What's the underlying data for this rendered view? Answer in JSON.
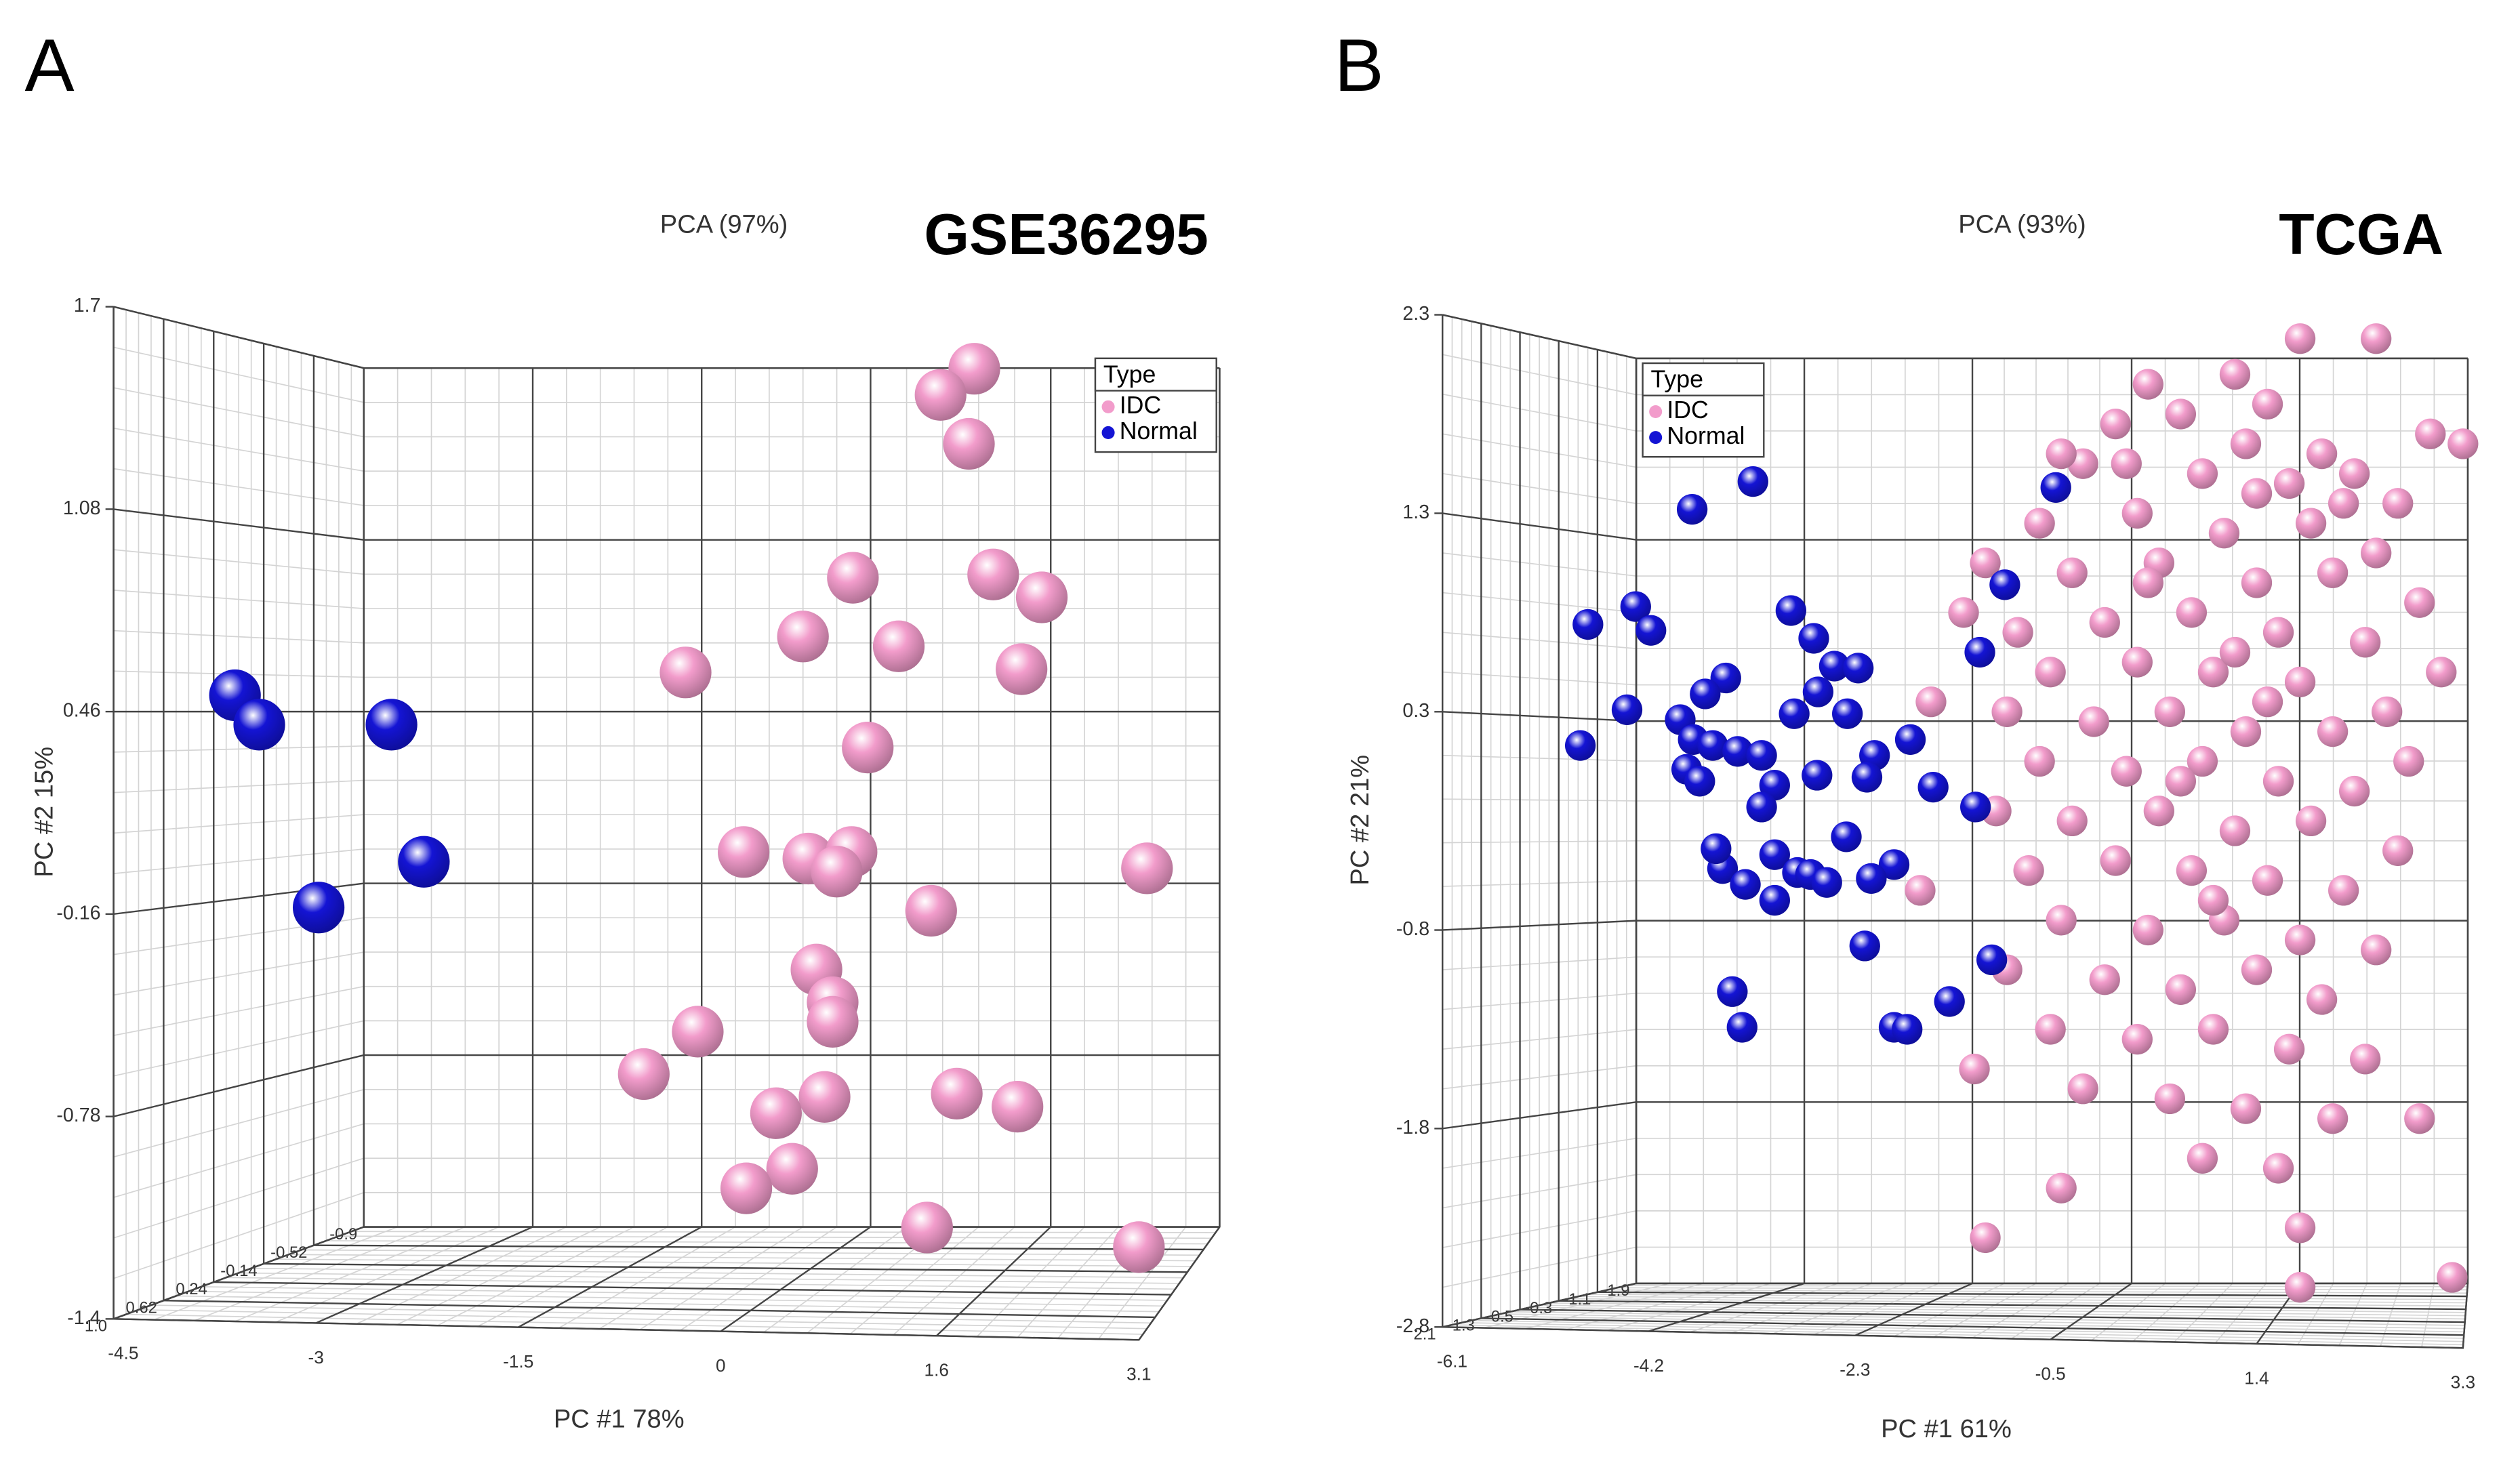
{
  "chart_data": [
    {
      "type": "scatter",
      "panel": "A",
      "title": "PCA (97%)",
      "annotation": "GSE36295",
      "xlabel": "PC #1 78%",
      "ylabel": "PC #2 15%",
      "legend_title": "Type",
      "xlim": [
        -4.5,
        3.1
      ],
      "xticks": [
        -4.5,
        -3,
        -1.5,
        0,
        1.6,
        3.1
      ],
      "ylim": [
        -1.4,
        1.7
      ],
      "yticks": [
        -1.4,
        -0.78,
        -0.16,
        0.46,
        1.08,
        1.7
      ],
      "zlim": [
        -0.9,
        1
      ],
      "zticks": [
        -0.9,
        -0.52,
        -0.14,
        0.24,
        0.62,
        {
          "value": 1,
          "label": "1.0"
        }
      ],
      "series": [
        {
          "name": "IDC",
          "color": "#f29ccb",
          "x": [
            1.88,
            1.63,
            1.84,
            0.98,
            2.02,
            2.38,
            0.61,
            1.32,
            -0.26,
            2.23,
            1.09,
            0.17,
            0.65,
            0.97,
            0.86,
            1.56,
            3.16,
            0.71,
            0.83,
            0.83,
            -0.17,
            -0.57,
            0.77,
            1.75,
            2.2,
            0.41,
            0.53,
            0.19,
            1.53,
            3.1
          ],
          "values": [
            1.51,
            1.43,
            1.28,
            0.87,
            0.88,
            0.81,
            0.69,
            0.66,
            0.58,
            0.59,
            0.35,
            0.03,
            0.01,
            0.03,
            -0.03,
            -0.15,
            -0.02,
            -0.33,
            -0.43,
            -0.49,
            -0.52,
            -0.65,
            -0.72,
            -0.71,
            -0.75,
            -0.77,
            -0.94,
            -1.0,
            -1.12,
            -1.18
          ]
        },
        {
          "name": "Normal",
          "color": "#1414d4",
          "x": [
            -3.6,
            -3.42,
            -2.44,
            -2.2,
            -2.98
          ],
          "values": [
            0.51,
            0.42,
            0.42,
            0.0,
            -0.14
          ]
        }
      ]
    },
    {
      "type": "scatter",
      "panel": "B",
      "title": "PCA (93%)",
      "annotation": "TCGA",
      "xlabel": "PC #1  61%",
      "ylabel": "PC #2  21%",
      "legend_title": "Type",
      "xlim": [
        -6.1,
        3.3
      ],
      "xticks": [
        -6.1,
        -4.2,
        -2.3,
        -0.5,
        1.4,
        3.3
      ],
      "ylim": [
        -2.8,
        2.3
      ],
      "yticks": [
        -2.8,
        -1.8,
        -0.8,
        0.3,
        1.3,
        2.3
      ],
      "zlim": [
        -1.9,
        2.1
      ],
      "zticks": [
        -1.9,
        -1.1,
        -0.3,
        0.5,
        1.3,
        2.1
      ],
      "series": [
        {
          "name": "IDC",
          "color": "#f29ccb",
          "x": [
            1.8,
            2.5,
            0.4,
            1.2,
            3.0,
            0.1,
            0.7,
            1.5,
            2.0,
            -0.2,
            0.9,
            1.7,
            2.3,
            2.7,
            3.3,
            -0.6,
            0.3,
            1.1,
            1.9,
            2.5,
            -1.1,
            -0.3,
            0.5,
            1.4,
            2.1,
            2.9,
            -1.3,
            -0.8,
            0.0,
            0.8,
            1.6,
            2.4,
            3.1,
            -0.5,
            0.3,
            1.0,
            1.8,
            2.6,
            -1.6,
            -0.9,
            -0.1,
            0.6,
            1.3,
            2.1,
            2.8,
            -0.6,
            0.2,
            0.9,
            1.6,
            2.3,
            -1.0,
            -0.3,
            0.5,
            1.2,
            1.9,
            2.7,
            -0.7,
            0.1,
            0.8,
            1.5,
            2.2,
            -1.7,
            -0.4,
            0.4,
            1.1,
            1.8,
            2.5,
            -0.9,
            0.0,
            0.7,
            1.4,
            2.0,
            -0.5,
            0.3,
            1.0,
            1.7,
            2.4,
            -1.2,
            -0.2,
            0.6,
            1.3,
            2.1,
            2.9,
            0.9,
            1.6,
            -0.4,
            1.8,
            -1.1,
            1.8,
            3.2,
            0.4,
            1.2,
            1.5,
            0.7,
            1.0,
            1.4,
            0.2,
            2.2,
            -0.4,
            1.3
          ],
          "values": [
            2.18,
            2.18,
            1.95,
            2.0,
            1.7,
            1.75,
            1.8,
            1.85,
            1.6,
            1.55,
            1.5,
            1.45,
            1.5,
            1.35,
            1.65,
            1.25,
            1.3,
            1.2,
            1.25,
            1.1,
            1.05,
            1.0,
            1.05,
            0.95,
            1.0,
            0.85,
            0.8,
            0.7,
            0.75,
            0.8,
            0.7,
            0.65,
            0.5,
            0.5,
            0.55,
            0.5,
            0.45,
            0.3,
            0.35,
            0.3,
            0.25,
            0.3,
            0.2,
            0.2,
            0.05,
            0.05,
            0.0,
            0.05,
            -0.05,
            -0.1,
            -0.2,
            -0.25,
            -0.2,
            -0.3,
            -0.25,
            -0.4,
            -0.5,
            -0.45,
            -0.5,
            -0.55,
            -0.6,
            -0.6,
            -0.75,
            -0.8,
            -0.75,
            -0.85,
            -0.9,
            -1.0,
            -1.05,
            -1.1,
            -1.0,
            -1.15,
            -1.3,
            -1.35,
            -1.3,
            -1.4,
            -1.45,
            -1.5,
            -1.6,
            -1.65,
            -1.7,
            -1.75,
            -1.75,
            -1.95,
            -2.0,
            -2.1,
            -2.3,
            -2.35,
            -2.6,
            -2.55,
            0.95,
            0.6,
            0.35,
            -0.05,
            -0.65,
            1.4,
            1.55,
            1.35,
            1.6,
            1.65
          ]
        },
        {
          "name": "Normal",
          "color": "#1414d4",
          "x": [
            -3.24,
            -3.8,
            -0.45,
            -0.92,
            -4.76,
            -4.32,
            -4.18,
            -2.89,
            -2.68,
            -1.15,
            -2.49,
            -2.27,
            -3.49,
            -3.68,
            -2.64,
            -4.4,
            -3.91,
            -2.86,
            -2.37,
            -4.83,
            -3.79,
            -3.61,
            -3.38,
            -3.16,
            -1.79,
            -2.12,
            -3.85,
            -3.73,
            -3.04,
            -2.65,
            -2.19,
            -1.58,
            -1.19,
            -3.16,
            -3.52,
            -3.04,
            -2.83,
            -2.38,
            -1.94,
            -2.71,
            -2.15,
            -3.31,
            -2.56,
            -3.04,
            -2.21,
            -1.04,
            -3.43,
            -3.34,
            -1.94,
            -1.82,
            -1.43,
            -3.58
          ],
          "values": [
            1.46,
            1.32,
            1.43,
            0.94,
            0.74,
            0.83,
            0.71,
            0.81,
            0.67,
            0.6,
            0.53,
            0.52,
            0.47,
            0.39,
            0.4,
            0.31,
            0.26,
            0.29,
            0.29,
            0.13,
            0.16,
            0.13,
            0.1,
            0.08,
            0.16,
            0.08,
            0.01,
            -0.05,
            -0.07,
            -0.02,
            -0.03,
            -0.08,
            -0.18,
            -0.18,
            -0.49,
            -0.42,
            -0.51,
            -0.33,
            -0.47,
            -0.52,
            -0.54,
            -0.57,
            -0.56,
            -0.65,
            -0.88,
            -0.95,
            -1.11,
            -1.29,
            -1.29,
            -1.3,
            -1.16,
            -0.39
          ]
        }
      ]
    }
  ]
}
